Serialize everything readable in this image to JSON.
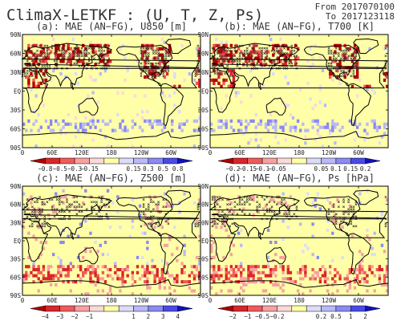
{
  "figure": {
    "title": "ClimaX-LETKF : (U, T, Z, Ps)",
    "date_from": "From 2017070100",
    "date_to": "To 2017123118"
  },
  "lat_labels": [
    "90N",
    "60N",
    "30N",
    "EQ",
    "30S",
    "60S",
    "90S"
  ],
  "lon_labels": [
    "0",
    "60E",
    "120E",
    "180",
    "120W",
    "60W"
  ],
  "panels": [
    {
      "title": "(a): MAE (AN−FG), U850 [m]",
      "colorbar_labels": [
        "−0.8",
        "−0.5",
        "−0.3",
        "−0.15",
        "0.15",
        "0.3",
        "0.5",
        "0.8"
      ],
      "colorbar_colors": [
        "#b00000",
        "#d8262a",
        "#f05a5a",
        "#f7a1a1",
        "#fbd9d9",
        "#ffffa8",
        "#dcdcf9",
        "#b9b9f7",
        "#8a8af2",
        "#4a4ae6",
        "#1010c0"
      ]
    },
    {
      "title": "(b): MAE (AN−FG), T700 [K]",
      "colorbar_labels": [
        "−0.2",
        "−0.15",
        "−0.1",
        "−0.05",
        "0.05",
        "0.1",
        "0.15",
        "0.2"
      ],
      "colorbar_colors": [
        "#b00000",
        "#d8262a",
        "#f05a5a",
        "#f7a1a1",
        "#fbd9d9",
        "#ffffa8",
        "#dcdcf9",
        "#b9b9f7",
        "#8a8af2",
        "#4a4ae6",
        "#1010c0"
      ]
    },
    {
      "title": "(c): MAE (AN−FG), Z500 [m]",
      "colorbar_labels": [
        "−4",
        "−3",
        "−2",
        "−1",
        "1",
        "2",
        "3",
        "4"
      ],
      "colorbar_colors": [
        "#b00000",
        "#d8262a",
        "#f05a5a",
        "#f7a1a1",
        "#fbd9d9",
        "#ffffa8",
        "#dcdcf9",
        "#b9b9f7",
        "#8a8af2",
        "#4a4ae6",
        "#1010c0"
      ]
    },
    {
      "title": "(d): MAE (AN−FG), Ps [hPa]",
      "colorbar_labels": [
        "−2",
        "−1",
        "−0.5",
        "−0.2",
        "0.2",
        "0.5",
        "1",
        "2"
      ],
      "colorbar_colors": [
        "#b00000",
        "#d8262a",
        "#f05a5a",
        "#f7a1a1",
        "#fbd9d9",
        "#ffffa8",
        "#dcdcf9",
        "#b9b9f7",
        "#8a8af2",
        "#4a4ae6",
        "#1010c0"
      ]
    }
  ],
  "colors": {
    "background": "#ffffa8",
    "coastline": "#000000"
  }
}
